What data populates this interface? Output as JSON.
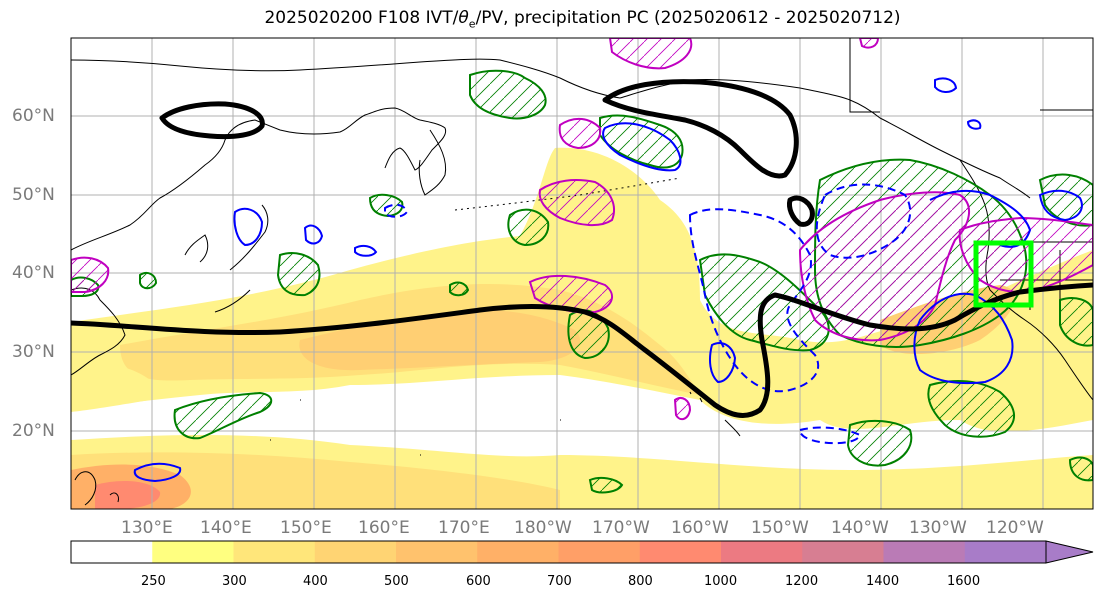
{
  "title": {
    "prefix": "2025020200 F108 IVT/",
    "theta": "θ",
    "theta_sub": "e",
    "suffix": "/PV, precipitation PC (2025020612 - 2025020712)"
  },
  "lat_labels": [
    "60°N",
    "50°N",
    "40°N",
    "30°N",
    "20°N"
  ],
  "lon_labels": [
    "130°E",
    "140°E",
    "150°E",
    "160°E",
    "170°E",
    "180°W",
    "170°W",
    "160°W",
    "150°W",
    "140°W",
    "130°W",
    "120°W"
  ],
  "colorbar": {
    "ticks": [
      "250",
      "300",
      "400",
      "500",
      "600",
      "700",
      "800",
      "1000",
      "1200",
      "1400",
      "1600"
    ],
    "colors": [
      "#ffffff",
      "#ffff80",
      "#ffe67a",
      "#ffd473",
      "#ffc26d",
      "#ffb067",
      "#ff9f67",
      "#ff8a70",
      "#ec7a82",
      "#d77e92",
      "#ba7bb6",
      "#a87cc8"
    ]
  },
  "colors": {
    "frame": "#000000",
    "grid": "#b0b0b0",
    "theta_e_contour": "#000000",
    "pv_positive": "#0000ff",
    "pv_negative": "#0000ff",
    "precip_pc_positive": "#008000",
    "precip_pc_negative": "#c000c0",
    "target_box": "#00ff00"
  }
}
